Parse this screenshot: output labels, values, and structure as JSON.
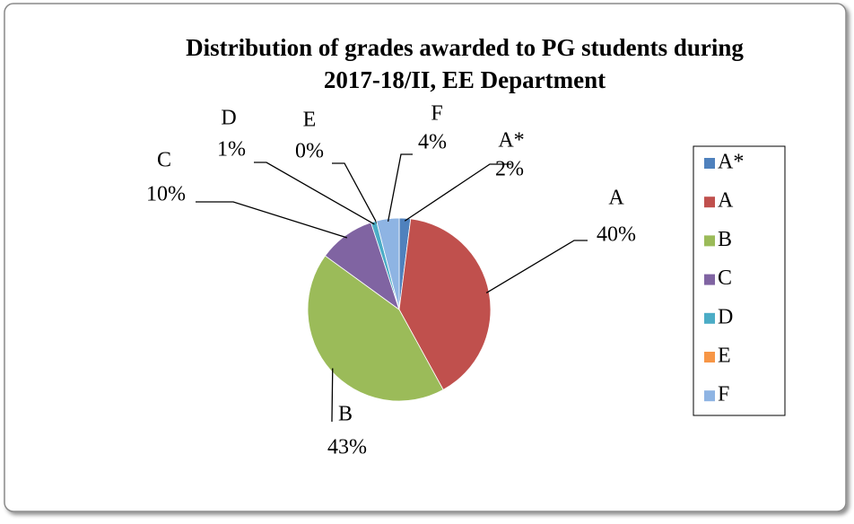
{
  "chart_data": {
    "type": "pie",
    "title": [
      "Distribution of grades awarded to PG students during",
      "2017-18/II, EE Department"
    ],
    "categories": [
      "A*",
      "A",
      "B",
      "C",
      "D",
      "E",
      "F"
    ],
    "values": [
      2,
      40,
      43,
      10,
      1,
      0,
      4
    ],
    "value_labels": [
      "2%",
      "40%",
      "43%",
      "10%",
      "1%",
      "0%",
      "4%"
    ],
    "colors": [
      "#4f81bd",
      "#c0504d",
      "#9bbb59",
      "#8064a2",
      "#4bacc6",
      "#f79646",
      "#8eb4e3"
    ],
    "legend": "right"
  }
}
